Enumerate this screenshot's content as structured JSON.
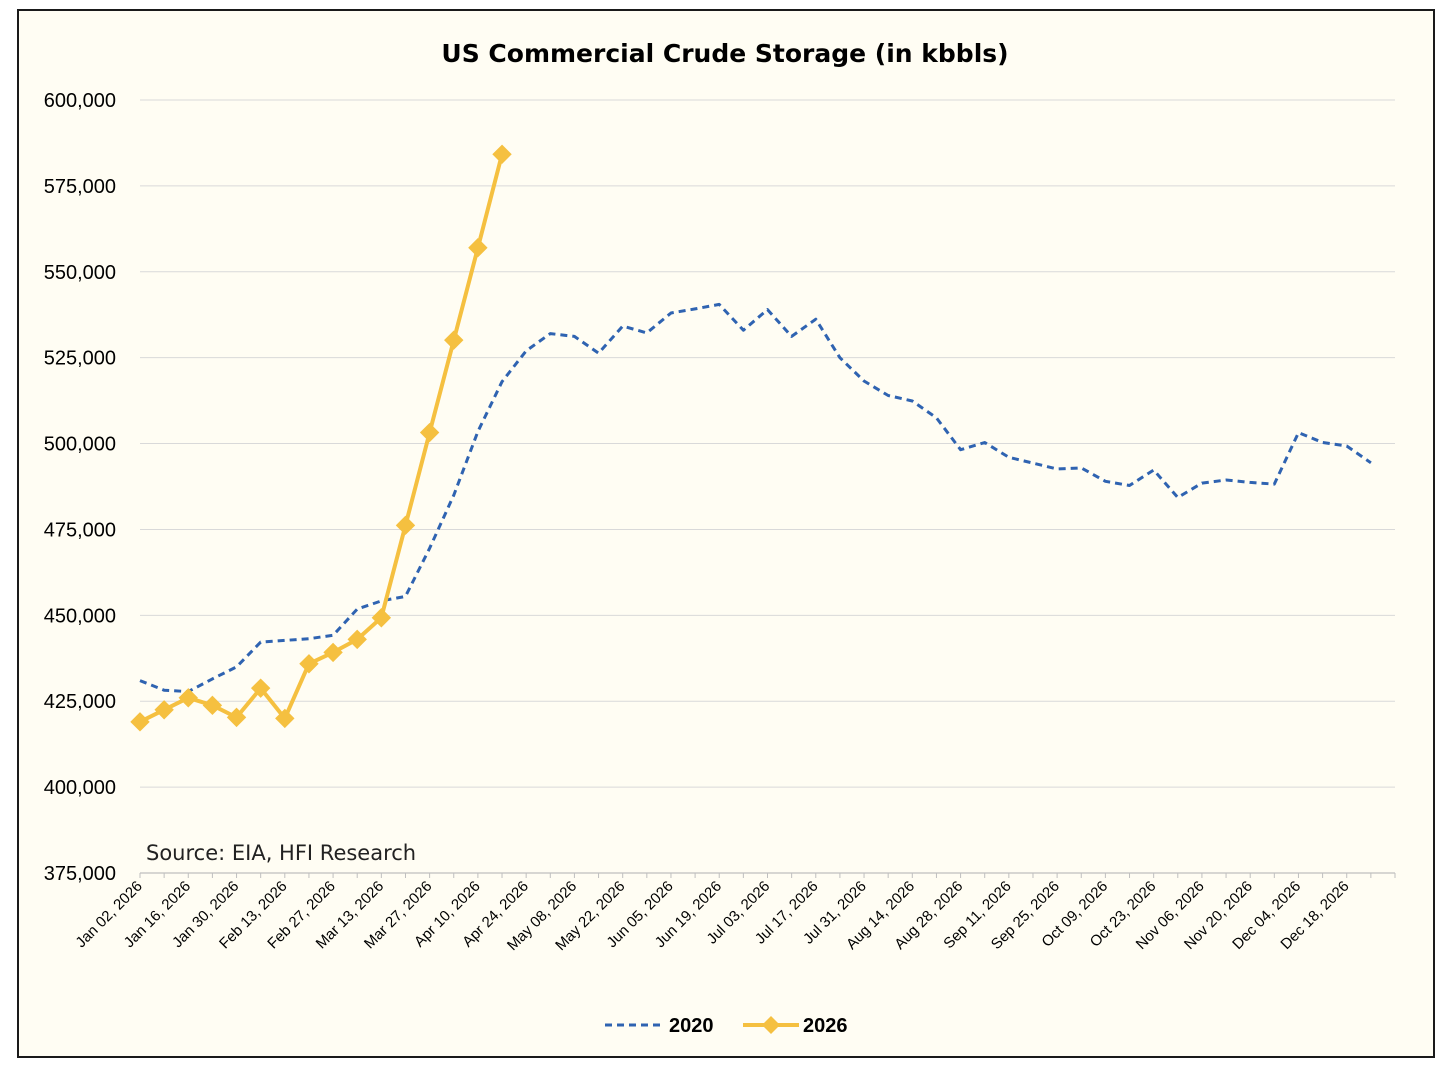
{
  "chart_data": {
    "type": "line",
    "title": "US Commercial Crude Storage (in kbbls)",
    "xlabel": "",
    "ylabel": "",
    "ylim": [
      375000,
      600000
    ],
    "y_ticks": [
      375000,
      400000,
      425000,
      450000,
      475000,
      500000,
      525000,
      550000,
      575000,
      600000
    ],
    "y_tick_labels": [
      "375,000",
      "400,000",
      "425,000",
      "450,000",
      "475,000",
      "500,000",
      "525,000",
      "550,000",
      "575,000",
      "600,000"
    ],
    "x": [
      "Jan 02, 2026",
      "Jan 09, 2026",
      "Jan 16, 2026",
      "Jan 23, 2026",
      "Jan 30, 2026",
      "Feb 06, 2026",
      "Feb 13, 2026",
      "Feb 20, 2026",
      "Feb 27, 2026",
      "Mar 06, 2026",
      "Mar 13, 2026",
      "Mar 20, 2026",
      "Mar 27, 2026",
      "Apr 03, 2026",
      "Apr 10, 2026",
      "Apr 17, 2026",
      "Apr 24, 2026",
      "May 01, 2026",
      "May 08, 2026",
      "May 15, 2026",
      "May 22, 2026",
      "May 29, 2026",
      "Jun 05, 2026",
      "Jun 12, 2026",
      "Jun 19, 2026",
      "Jun 26, 2026",
      "Jul 03, 2026",
      "Jul 10, 2026",
      "Jul 17, 2026",
      "Jul 24, 2026",
      "Jul 31, 2026",
      "Aug 07, 2026",
      "Aug 14, 2026",
      "Aug 21, 2026",
      "Aug 28, 2026",
      "Sep 04, 2026",
      "Sep 11, 2026",
      "Sep 18, 2026",
      "Sep 25, 2026",
      "Oct 02, 2026",
      "Oct 09, 2026",
      "Oct 16, 2026",
      "Oct 23, 2026",
      "Oct 30, 2026",
      "Nov 06, 2026",
      "Nov 13, 2026",
      "Nov 20, 2026",
      "Nov 27, 2026",
      "Dec 04, 2026",
      "Dec 11, 2026",
      "Dec 18, 2026",
      "Dec 25, 2026"
    ],
    "x_tick_labels": [
      "Jan 02, 2026",
      "Jan 16, 2026",
      "Jan 30, 2026",
      "Feb 13, 2026",
      "Feb 27, 2026",
      "Mar 13, 2026",
      "Mar 27, 2026",
      "Apr 10, 2026",
      "Apr 24, 2026",
      "May 08, 2026",
      "May 22, 2026",
      "Jun 05, 2026",
      "Jun 19, 2026",
      "Jul 03, 2026",
      "Jul 17, 2026",
      "Jul 31, 2026",
      "Aug 14, 2026",
      "Aug 28, 2026",
      "Sep 11, 2026",
      "Sep 25, 2026",
      "Oct 09, 2026",
      "Oct 23, 2026",
      "Nov 06, 2026",
      "Nov 20, 2026",
      "Dec 04, 2026",
      "Dec 18, 2026"
    ],
    "series": [
      {
        "name": "2020",
        "color": "#2f63b1",
        "style": "dashed",
        "values": [
          431000,
          428200,
          427800,
          431500,
          435000,
          442200,
          442700,
          443200,
          444200,
          451800,
          454200,
          455500,
          469500,
          485000,
          503500,
          518000,
          527000,
          532000,
          531200,
          526300,
          534200,
          532200,
          538000,
          539200,
          540500,
          533000,
          539000,
          531200,
          536200,
          525000,
          518200,
          514000,
          512400,
          507500,
          498200,
          500300,
          496000,
          494300,
          492600,
          492900,
          489000,
          487800,
          492300,
          484300,
          488500,
          489400,
          488700,
          488200,
          503200,
          500300,
          499300,
          494400
        ]
      },
      {
        "name": "2026",
        "color": "#f5c040",
        "style": "solid",
        "marker": "diamond",
        "values": [
          419000,
          422500,
          426000,
          423800,
          420300,
          428800,
          420000,
          435900,
          439200,
          443000,
          449300,
          476200,
          503200,
          530100,
          557000,
          584200,
          null,
          null,
          null,
          null,
          null,
          null,
          null,
          null,
          null,
          null,
          null,
          null,
          null,
          null,
          null,
          null,
          null,
          null,
          null,
          null,
          null,
          null,
          null,
          null,
          null,
          null,
          null,
          null,
          null,
          null,
          null,
          null,
          null,
          null,
          null,
          null
        ]
      }
    ],
    "annotation": "Source: EIA, HFI Research",
    "legend": "bottom-center",
    "grid": true
  }
}
